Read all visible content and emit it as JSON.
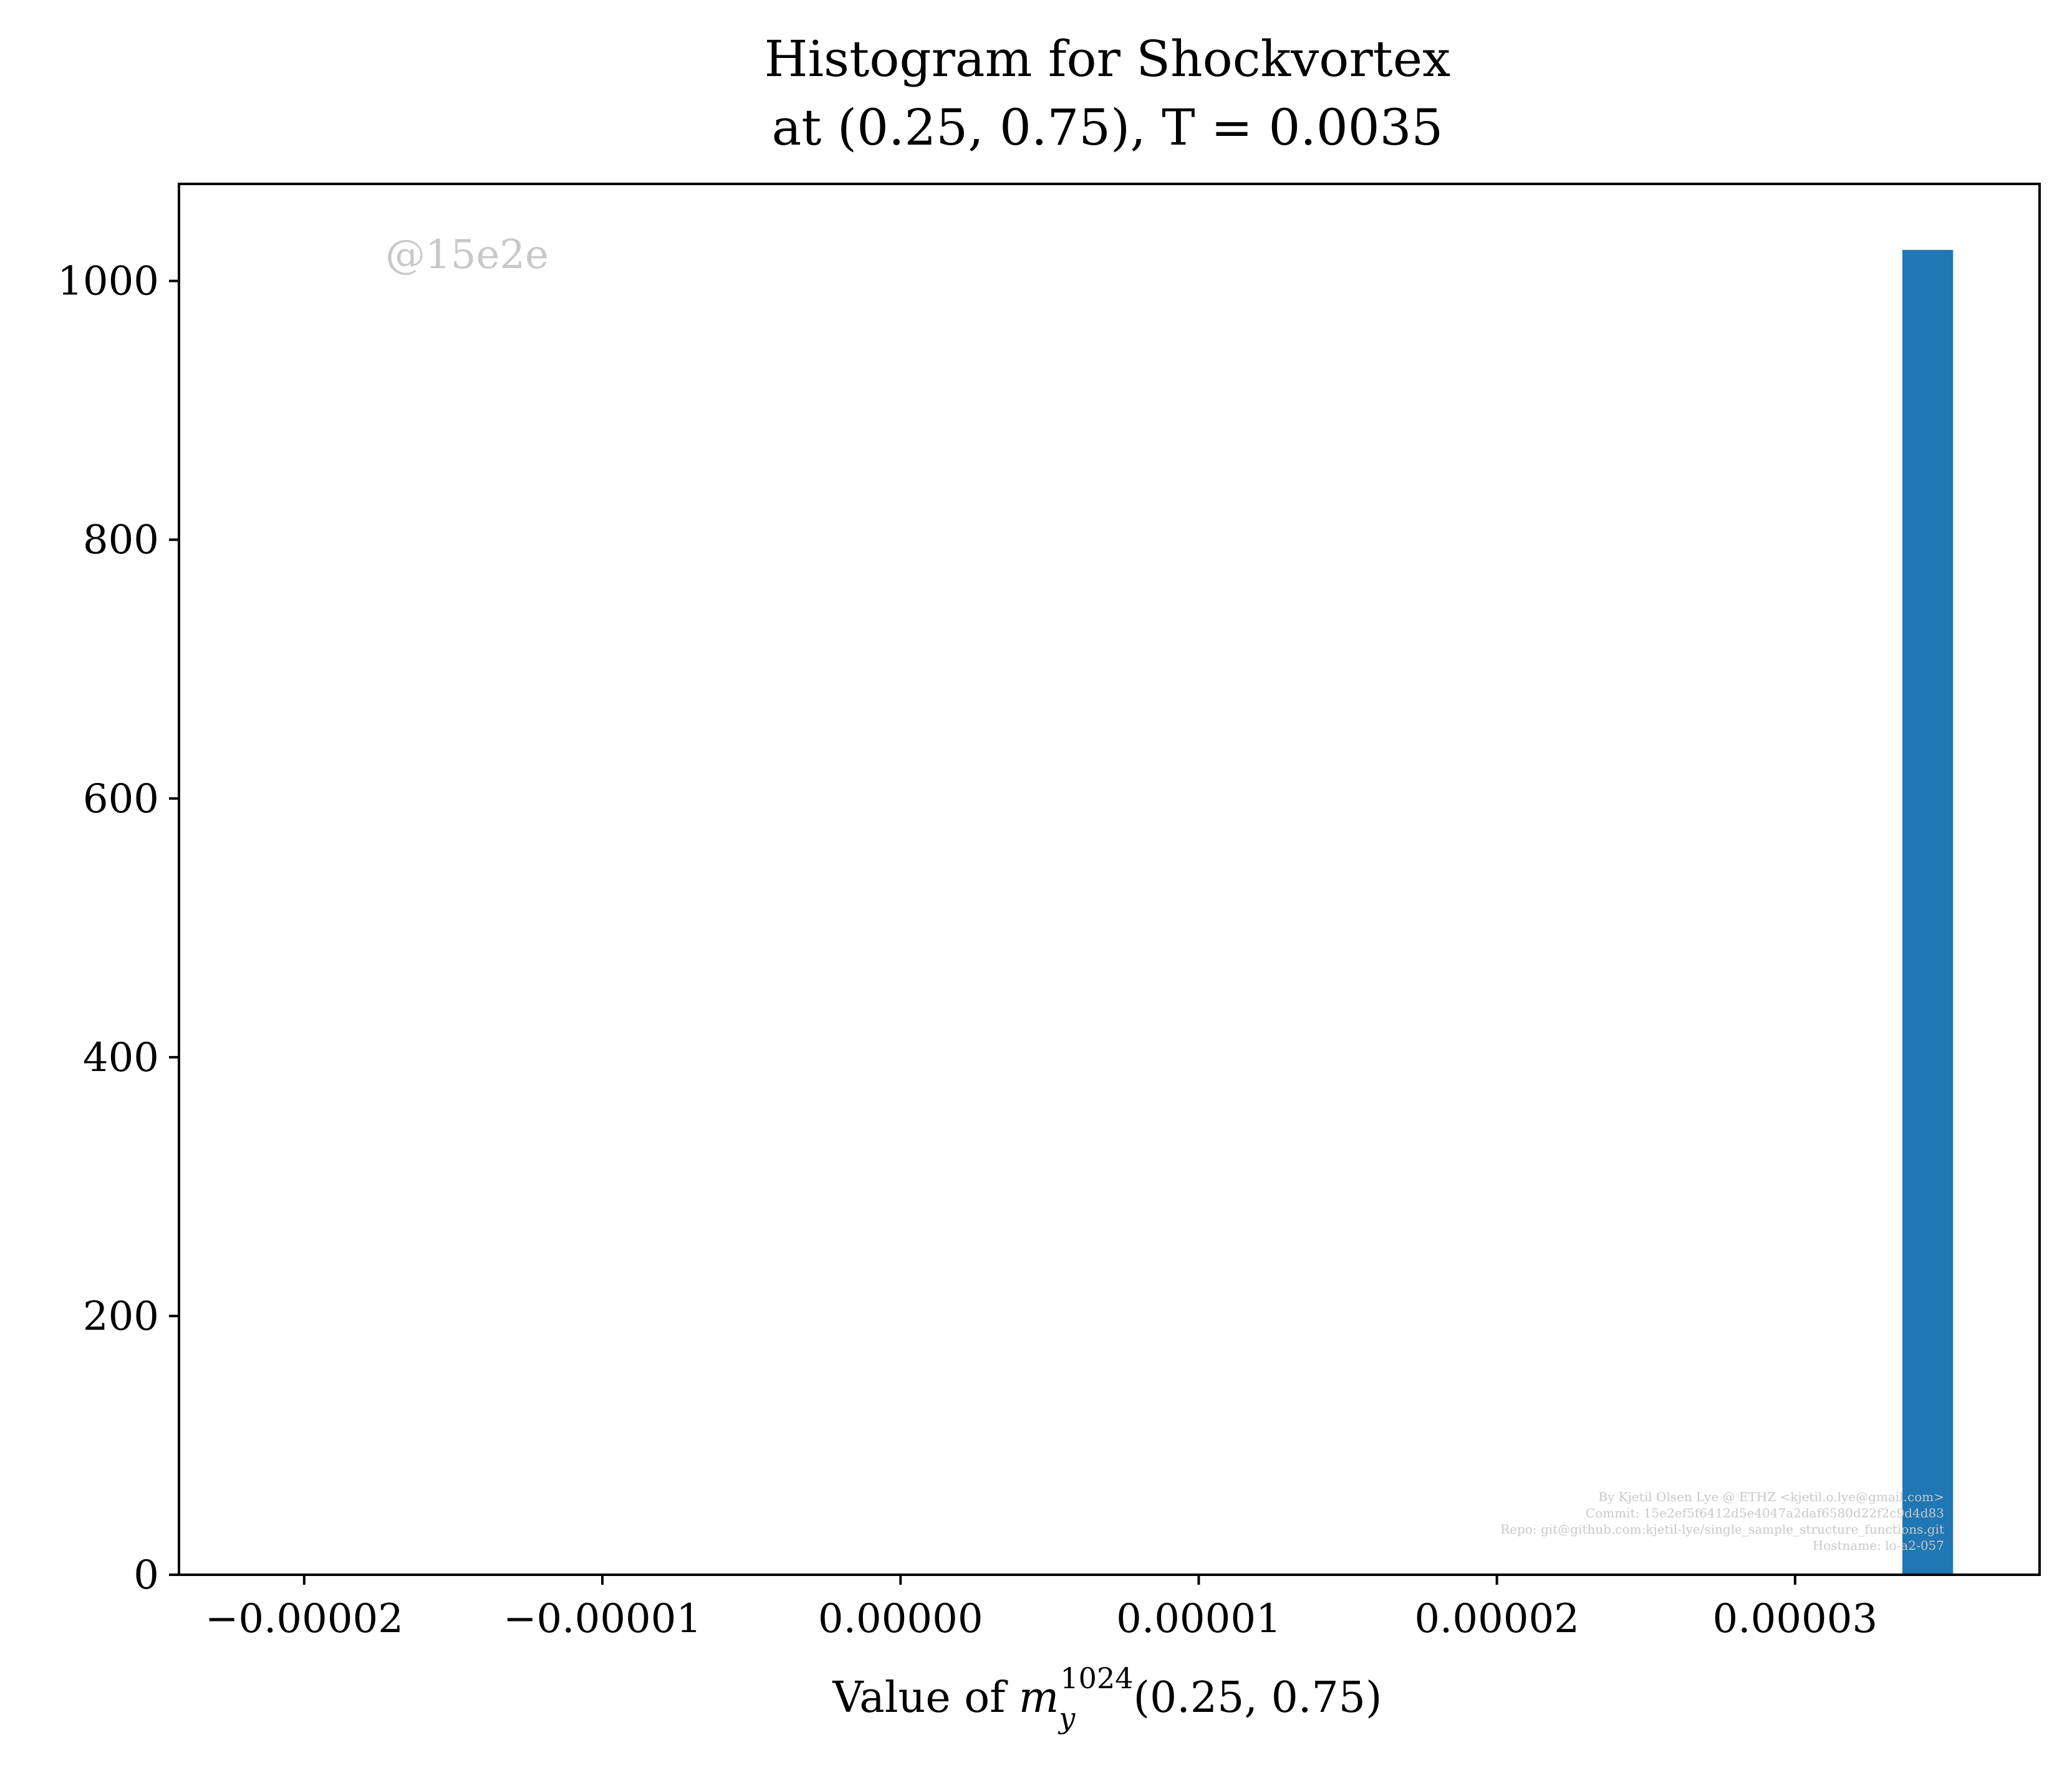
{
  "colors": {
    "bar": "#1f77b4",
    "axis": "#000000",
    "watermark": "#c8c8c8",
    "background": "#ffffff"
  },
  "chart_data": {
    "type": "bar",
    "title_line1": "Histogram for Shockvortex",
    "title_line2": "at (0.25, 0.75), T = 0.0035",
    "xlabel": "Value of m_y^1024(0.25, 0.75)",
    "xlabel_parts": {
      "prefix": "Value of ",
      "var": "m",
      "sub": "y",
      "sup": "1024",
      "suffix": "(0.25, 0.75)"
    },
    "ylabel": "",
    "xlim": [
      -2.42e-05,
      3.82e-05
    ],
    "ylim": [
      0,
      1075
    ],
    "x_ticks": [
      -2e-05,
      -1e-05,
      0.0,
      1e-05,
      2e-05,
      3e-05
    ],
    "x_tick_labels": [
      "−0.00002",
      "−0.00001",
      "0.00000",
      "0.00001",
      "0.00002",
      "0.00003"
    ],
    "y_ticks": [
      0,
      200,
      400,
      600,
      800,
      1000
    ],
    "y_tick_labels": [
      "0",
      "200",
      "400",
      "600",
      "800",
      "1000"
    ],
    "bins": [
      {
        "x_start": 3.36e-05,
        "x_end": 3.53e-05,
        "count": 1024
      }
    ],
    "grid": false,
    "legend": "none"
  },
  "watermark": "@15e2e",
  "credits": [
    "By Kjetil Olsen Lye @ ETHZ <kjetil.o.lye@gmail.com>",
    "Commit: 15e2ef5f6412d5e4047a2daf6580d22f2c9d4d83",
    "Repo: git@github.com:kjetil-lye/single_sample_structure_functions.git",
    "Hostname: lo-a2-057"
  ]
}
